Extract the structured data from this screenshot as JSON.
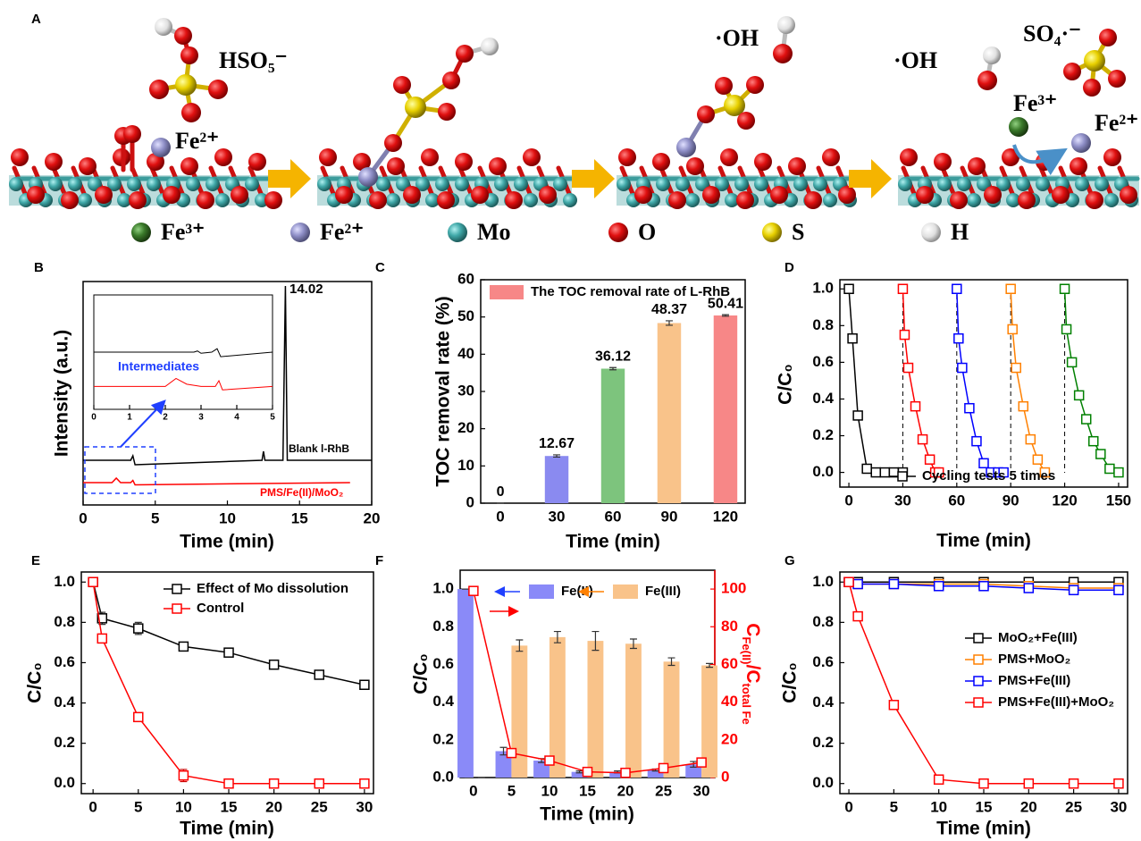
{
  "diagram": {
    "panel_label": "A",
    "labels": [
      "HSO₅⁻",
      "Fe²⁺",
      "·OH",
      "·OH",
      "SO₄·⁻",
      "Fe³⁺",
      "Fe²⁺"
    ],
    "legend": [
      "Fe³⁺",
      "Fe²⁺",
      "Mo",
      "O",
      "S",
      "H"
    ]
  },
  "chart_data": [
    {
      "panel_label": "B",
      "type": "line",
      "xlabel": "Time (min)",
      "ylabel": "Intensity (a.u.)",
      "xlim": [
        0,
        20
      ],
      "xticks": [
        0,
        5,
        10,
        15,
        20
      ],
      "ylim": [
        0,
        100
      ],
      "series": [
        {
          "color": "#000000",
          "x": [
            0,
            3.3,
            3.45,
            3.6,
            12.4,
            12.5,
            12.6,
            13.85,
            14.02,
            14.15,
            20
          ],
          "values": [
            20,
            20,
            22,
            18,
            20,
            24,
            20,
            20,
            98,
            20,
            20
          ]
        },
        {
          "color": "#ff0000",
          "x": [
            0,
            2.0,
            2.3,
            2.6,
            3.3,
            3.45,
            3.6,
            18.5
          ],
          "values": [
            10,
            10,
            12,
            10,
            10,
            11,
            9,
            10
          ]
        }
      ],
      "annotations": [
        {
          "text": "14.02",
          "color": "#000000"
        },
        {
          "text": "Blank l-RhB",
          "color": "#000000"
        },
        {
          "text": "PMS/Fe(II)/MoO₂",
          "color": "#ff0000"
        }
      ]
    },
    {
      "type": "line",
      "xlim": [
        0,
        5
      ],
      "xticks": [
        0,
        1,
        2,
        3,
        4,
        5
      ],
      "ylim": [
        0,
        100
      ],
      "series": [
        {
          "color": "#000000",
          "x": [
            0,
            2.8,
            2.9,
            3.0,
            3.3,
            3.45,
            3.55,
            5
          ],
          "values": [
            50,
            50,
            51,
            49,
            50,
            53,
            46,
            50
          ]
        },
        {
          "color": "#ff0000",
          "x": [
            0,
            2.0,
            2.3,
            2.6,
            3.0,
            3.4,
            3.5,
            3.6,
            5
          ],
          "values": [
            20,
            20,
            27,
            22,
            20,
            20,
            25,
            17,
            20
          ]
        }
      ],
      "annotations": [
        {
          "text": "Intermediates",
          "color": "#1f3fff"
        }
      ]
    },
    {
      "panel_label": "C",
      "type": "bar",
      "xlabel": "Time (min)",
      "ylabel": "TOC removal rate (%)",
      "categories": [
        0,
        30,
        60,
        90,
        120
      ],
      "ylim": [
        0,
        60
      ],
      "yticks": [
        0,
        10,
        20,
        30,
        40,
        50,
        60
      ],
      "data_labels": true,
      "legend": "upper left",
      "series": [
        {
          "name": "The TOC removal rate of L-RhB",
          "color": "#f78787",
          "colors": [
            "#8a8af0",
            "#8a8af0",
            "#7dc47d",
            "#f9c38a",
            "#f78787"
          ],
          "values": [
            0,
            12.67,
            36.12,
            48.37,
            50.41
          ],
          "errors": [
            0,
            0.3,
            0.3,
            0.6,
            0.2
          ]
        }
      ]
    },
    {
      "panel_label": "D",
      "type": "line",
      "marker": "square",
      "xlabel": "Time (min)",
      "ylabel": "C/C₀",
      "xlim": [
        -5,
        155
      ],
      "xticks": [
        0,
        30,
        60,
        90,
        120,
        150
      ],
      "ylim": [
        -0.08,
        1.05
      ],
      "yticks": [
        {
          "value": 0,
          "label": "0.0"
        },
        0.2,
        0.4,
        0.6,
        0.8,
        {
          "value": 1,
          "label": "1.0"
        }
      ],
      "vlines": [
        30,
        60,
        90,
        120
      ],
      "legend": "lower center",
      "series": [
        {
          "name": "Cycling tests 5 times",
          "color": "#000000",
          "x": [
            0,
            2,
            5,
            10,
            15,
            20,
            25,
            30
          ],
          "values": [
            1,
            0.73,
            0.31,
            0.02,
            0,
            0,
            0,
            0
          ]
        },
        {
          "color": "#ff0000",
          "x": [
            30,
            31,
            33,
            37,
            41,
            45,
            48,
            50
          ],
          "values": [
            1,
            0.75,
            0.57,
            0.36,
            0.18,
            0.07,
            0,
            0
          ]
        },
        {
          "color": "#0000ff",
          "x": [
            60,
            61,
            63,
            67,
            71,
            75,
            79,
            83,
            86
          ],
          "values": [
            1,
            0.73,
            0.57,
            0.35,
            0.17,
            0.05,
            0,
            0,
            0
          ]
        },
        {
          "color": "#ff8000",
          "x": [
            90,
            91,
            93,
            97,
            101,
            105,
            109
          ],
          "values": [
            1,
            0.78,
            0.57,
            0.36,
            0.18,
            0.07,
            0
          ]
        },
        {
          "color": "#008000",
          "x": [
            120,
            121,
            124,
            128,
            132,
            136,
            140,
            145,
            150
          ],
          "values": [
            1,
            0.78,
            0.6,
            0.42,
            0.29,
            0.17,
            0.1,
            0.02,
            0
          ]
        }
      ]
    },
    {
      "panel_label": "E",
      "type": "line",
      "marker": "square",
      "xlabel": "Time (min)",
      "ylabel": "C/C₀",
      "xlim": [
        -1.3,
        31
      ],
      "xticks": [
        0,
        5,
        10,
        15,
        20,
        25,
        30
      ],
      "ylim": [
        -0.05,
        1.05
      ],
      "yticks": [
        {
          "value": 0,
          "label": "0.0"
        },
        0.2,
        0.4,
        0.6,
        0.8,
        {
          "value": 1,
          "label": "1.0"
        }
      ],
      "legend": "upper right",
      "series": [
        {
          "name": "Effect of Mo dissolution",
          "color": "#000000",
          "x": [
            0,
            1,
            5,
            10,
            15,
            20,
            25,
            30
          ],
          "values": [
            1,
            0.82,
            0.77,
            0.68,
            0.65,
            0.59,
            0.54,
            0.49
          ],
          "errors": [
            0,
            0.03,
            0.03,
            0.015,
            0.02,
            0.02,
            0.01,
            0.01
          ]
        },
        {
          "name": "Control",
          "color": "#ff0000",
          "x": [
            0,
            1,
            5,
            10,
            15,
            20,
            25,
            30
          ],
          "values": [
            1,
            0.72,
            0.33,
            0.04,
            0,
            0,
            0,
            0
          ],
          "errors": [
            0,
            0.02,
            0.02,
            0.03,
            0,
            0,
            0,
            0
          ]
        }
      ]
    },
    {
      "panel_label": "F",
      "type": "bar",
      "xlabel": "Time (min)",
      "ylabel": "C/C₀",
      "y2label": [
        "C",
        "Fe(II)",
        "/C",
        "total Fe"
      ],
      "y2color": "#ff0000",
      "categories": [
        0,
        5,
        10,
        15,
        20,
        25,
        30
      ],
      "ylim": [
        0,
        1.1
      ],
      "yticks": [
        {
          "value": 0,
          "label": "0.0"
        },
        0.2,
        0.4,
        0.6,
        0.8,
        {
          "value": 1,
          "label": "1.0"
        }
      ],
      "y2lim": [
        0,
        110
      ],
      "y2ticks": [
        0,
        20,
        40,
        60,
        80,
        100
      ],
      "legend": "upper center",
      "series": [
        {
          "name": "Fe(II)",
          "color": "#8a8af8",
          "values": [
            1,
            0.14,
            0.09,
            0.03,
            0.03,
            0.04,
            0.07
          ],
          "errors": [
            0,
            0.02,
            0.01,
            0.005,
            0.005,
            0.005,
            0.015
          ]
        },
        {
          "name": "Fe(III)",
          "color": "#f9c38a",
          "values": [
            0,
            0.7,
            0.745,
            0.725,
            0.71,
            0.615,
            0.595
          ],
          "errors": [
            0,
            0.03,
            0.03,
            0.05,
            0.025,
            0.02,
            0.01
          ]
        },
        {
          "type": "line",
          "marker": "square",
          "axis": "y2",
          "color": "#ff0000",
          "values": [
            99,
            13,
            9,
            3,
            2.5,
            5,
            8
          ],
          "errors": [
            0,
            1,
            1,
            1,
            1,
            1,
            1.5
          ]
        }
      ]
    },
    {
      "panel_label": "G",
      "type": "line",
      "marker": "square",
      "xlabel": "Time (min)",
      "ylabel": "C/C₀",
      "xlim": [
        -1,
        31
      ],
      "xticks": [
        0,
        5,
        10,
        15,
        20,
        25,
        30
      ],
      "ylim": [
        -0.05,
        1.05
      ],
      "yticks": [
        {
          "value": 0,
          "label": "0.0"
        },
        0.2,
        0.4,
        0.6,
        0.8,
        {
          "value": 1,
          "label": "1.0"
        }
      ],
      "legend": "center right",
      "series": [
        {
          "name": "MoO₂+Fe(III)",
          "color": "#000000",
          "x": [
            0,
            1,
            5,
            10,
            15,
            20,
            25,
            30
          ],
          "values": [
            1,
            1,
            1,
            1,
            1,
            1,
            1,
            1
          ]
        },
        {
          "name": "PMS+MoO₂",
          "color": "#ff8000",
          "x": [
            0,
            1,
            5,
            10,
            15,
            20,
            25,
            30
          ],
          "values": [
            1,
            0.99,
            0.99,
            0.99,
            0.99,
            0.98,
            0.97,
            0.97
          ]
        },
        {
          "name": "PMS+Fe(III)",
          "color": "#0000ff",
          "x": [
            0,
            1,
            5,
            10,
            15,
            20,
            25,
            30
          ],
          "values": [
            1,
            0.99,
            0.99,
            0.98,
            0.98,
            0.97,
            0.96,
            0.96
          ]
        },
        {
          "name": "PMS+Fe(III)+MoO₂",
          "color": "#ff0000",
          "x": [
            0,
            1,
            5,
            10,
            15,
            20,
            25,
            30
          ],
          "values": [
            1,
            0.83,
            0.39,
            0.02,
            0,
            0,
            0,
            0
          ]
        }
      ]
    }
  ]
}
